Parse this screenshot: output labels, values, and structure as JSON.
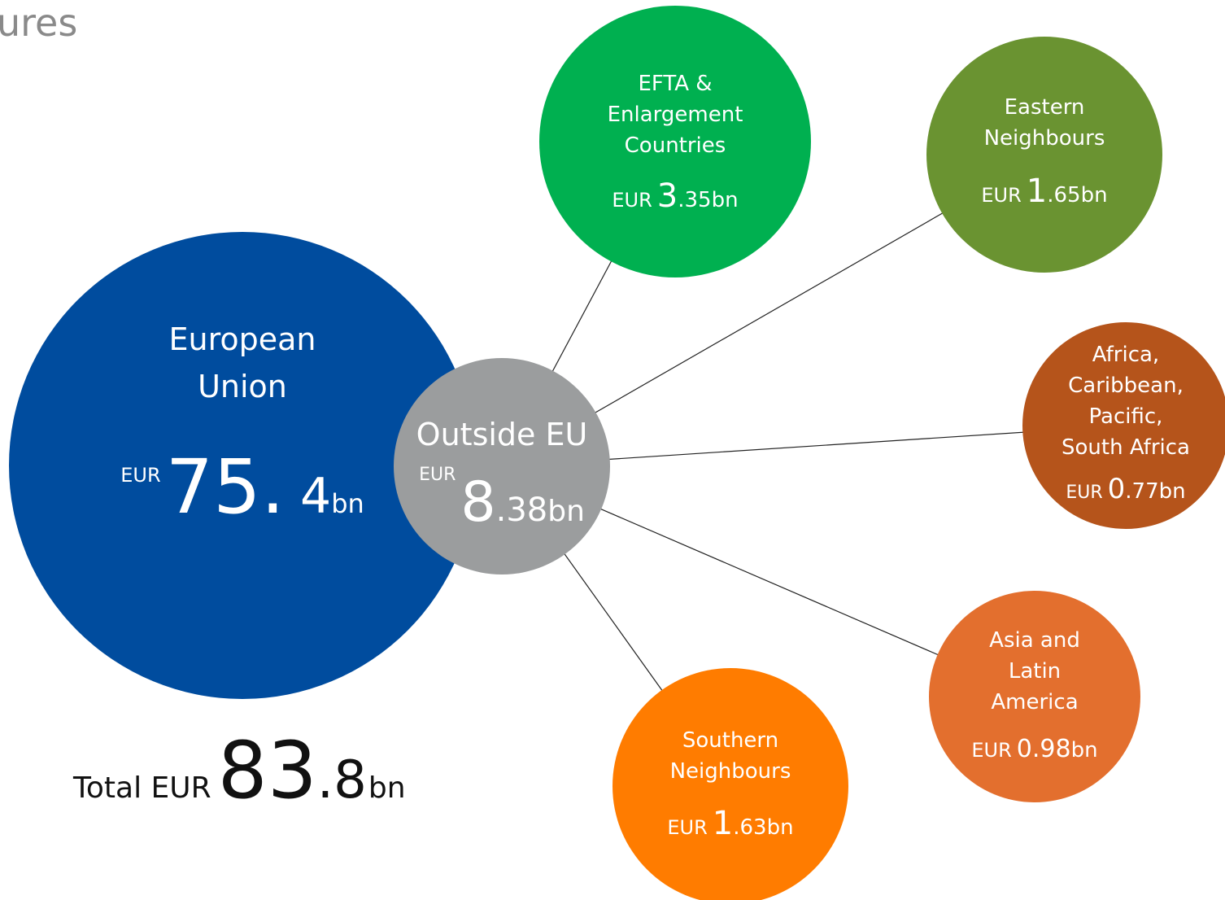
{
  "title": "ures",
  "hub": {
    "label": [
      "European",
      "Union"
    ],
    "currency": "EUR",
    "amount": "75. 4",
    "unit": "bn",
    "color": "#004c9e"
  },
  "center": {
    "label": [
      "Outside EU"
    ],
    "currency": "EUR",
    "amount": "8.38",
    "unit": "bn",
    "color": "#9b9d9e"
  },
  "nodes": [
    {
      "label": [
        "EFTA &",
        "Enlargement",
        "Countries"
      ],
      "currency": "EUR",
      "amount": "3.35",
      "unit": "bn",
      "color": "#00b050"
    },
    {
      "label": [
        "Eastern",
        "Neighbours"
      ],
      "currency": "EUR",
      "amount": "1.65",
      "unit": "bn",
      "color": "#6a9331"
    },
    {
      "label": [
        "Africa,",
        "Caribbean,",
        "Pacific,",
        "South Africa"
      ],
      "currency": "EUR",
      "amount": "0.77",
      "unit": "bn",
      "color": "#b5541b"
    },
    {
      "label": [
        "Asia and",
        "Latin",
        "America"
      ],
      "currency": "EUR",
      "amount": "0.98",
      "unit": "bn",
      "color": "#e36f2e"
    },
    {
      "label": [
        "Southern",
        "Neighbours"
      ],
      "currency": "EUR",
      "amount": "1.63",
      "unit": "bn",
      "color": "#ff7c00"
    }
  ],
  "total": {
    "prefix": "Total EUR",
    "amount": "83.8",
    "unit": "bn"
  }
}
